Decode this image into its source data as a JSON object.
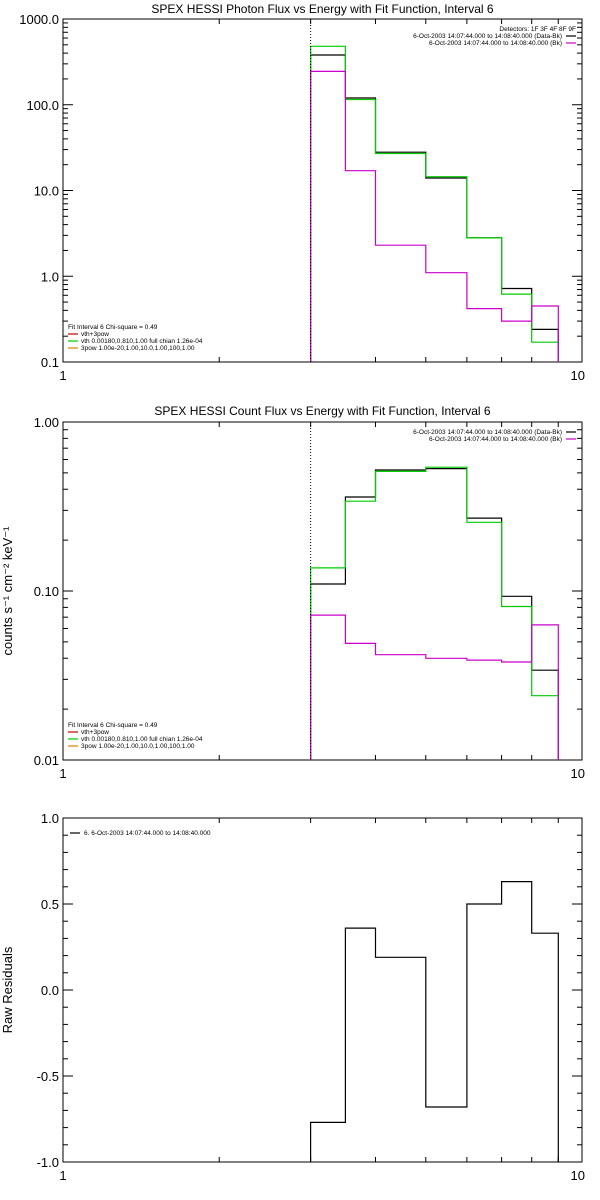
{
  "colors": {
    "black": "#000000",
    "magenta": "#cc00cc",
    "green": "#00cc00",
    "orange": "#e08000",
    "red": "#cc0000"
  },
  "chart_data": [
    {
      "id": "photon",
      "type": "line",
      "title": "SPEX HESSI Photon Flux vs Energy with Fit Function, Interval 6",
      "xlabel": "",
      "ylabel": "",
      "xscale": "log",
      "yscale": "log",
      "xlim": [
        1,
        10
      ],
      "ylim": [
        0.1,
        1000
      ],
      "xticklabels": [
        "1",
        "10"
      ],
      "yticklabels": [
        "0.1",
        "1.0",
        "10.0",
        "100.0",
        "1000.0"
      ],
      "vline_x": 3.0,
      "bin_edges": [
        3.0,
        3.5,
        4.0,
        5.0,
        6.0,
        7.0,
        8.0,
        9.0,
        10.0
      ],
      "series": [
        {
          "color": "black",
          "values": [
            380,
            120,
            28,
            14,
            2.8,
            0.72,
            0.24,
            null
          ]
        },
        {
          "color": "green",
          "values": [
            480,
            115,
            27,
            14.5,
            2.8,
            0.62,
            0.17,
            null
          ]
        },
        {
          "color": "magenta",
          "values": [
            245,
            17,
            2.3,
            1.1,
            0.42,
            0.3,
            0.45,
            null
          ]
        }
      ],
      "legend_topright": {
        "title": "Detectors: 1F 3F 4F 8F 9F",
        "lines": [
          {
            "text": "6-Oct-2003 14:07:44.000 to 14:08:40.000 (Data-Bk)",
            "color": "black"
          },
          {
            "text": "6-Oct-2003 14:07:44.000 to 14:08:40.000 (Bk)",
            "color": "magenta"
          }
        ]
      },
      "legend_bottomleft": {
        "title": "Fit Interval 6   Chi-square = 0.49",
        "lines": [
          {
            "text": "vth+3pow",
            "color": "red"
          },
          {
            "text": "vth 0.00180,0.810,1.00  full chian 1.26e-04",
            "color": "green"
          },
          {
            "text": "3pow 1.00e-20,1.00,10.0,1.00,100,1.00",
            "color": "orange"
          }
        ]
      }
    },
    {
      "id": "count",
      "type": "line",
      "title": "SPEX HESSI Count Flux vs Energy with Fit Function, Interval 6",
      "xlabel": "",
      "ylabel": "counts s⁻¹ cm⁻² keV⁻¹",
      "xscale": "log",
      "yscale": "log",
      "xlim": [
        1,
        10
      ],
      "ylim": [
        0.01,
        1.0
      ],
      "xticklabels": [
        "1",
        "10"
      ],
      "yticklabels": [
        "0.01",
        "0.10",
        "1.00"
      ],
      "vline_x": 3.0,
      "bin_edges": [
        3.0,
        3.5,
        4.0,
        5.0,
        6.0,
        7.0,
        8.0,
        9.0,
        10.0
      ],
      "series": [
        {
          "color": "black",
          "values": [
            0.11,
            0.36,
            0.52,
            0.53,
            0.27,
            0.093,
            0.034,
            null
          ]
        },
        {
          "color": "green",
          "values": [
            0.137,
            0.34,
            0.51,
            0.54,
            0.255,
            0.081,
            0.024,
            null
          ]
        },
        {
          "color": "magenta",
          "values": [
            0.072,
            0.049,
            0.042,
            0.04,
            0.039,
            0.038,
            0.063,
            null
          ]
        }
      ],
      "legend_topright": {
        "title": "",
        "lines": [
          {
            "text": "6-Oct-2003 14:07:44.000 to 14:08:40.000 (Data-Bk)",
            "color": "black"
          },
          {
            "text": "6-Oct-2003 14:07:44.000 to 14:08:40.000 (Bk)",
            "color": "magenta"
          }
        ]
      },
      "legend_bottomleft": {
        "title": "Fit Interval 6   Chi-square = 0.49",
        "lines": [
          {
            "text": "vth+3pow",
            "color": "red"
          },
          {
            "text": "vth 0.00180,0.810,1.00  full chian 1.26e-04",
            "color": "green"
          },
          {
            "text": "3pow 1.00e-20,1.00,10.0,1.00,100,1.00",
            "color": "orange"
          }
        ]
      }
    },
    {
      "id": "resid",
      "type": "line",
      "title": "",
      "xlabel": "",
      "ylabel": "Raw Residuals",
      "xscale": "log",
      "yscale": "linear",
      "xlim": [
        1,
        10
      ],
      "ylim": [
        -1.0,
        1.0
      ],
      "xticklabels": [
        "1",
        "10"
      ],
      "yticklabels": [
        "-1.0",
        "-0.5",
        "0.0",
        "0.5",
        "1.0"
      ],
      "bin_edges": [
        3.0,
        3.5,
        4.0,
        5.0,
        6.0,
        7.0,
        8.0,
        9.0,
        10.0
      ],
      "series": [
        {
          "color": "black",
          "values": [
            -0.77,
            0.36,
            0.19,
            -0.68,
            0.5,
            0.63,
            0.33,
            null
          ]
        }
      ],
      "legend_topleft": {
        "lines": [
          {
            "text": "6.  6-Oct-2003 14:07:44.000 to 14:08:40.000",
            "color": "black"
          }
        ]
      }
    }
  ]
}
